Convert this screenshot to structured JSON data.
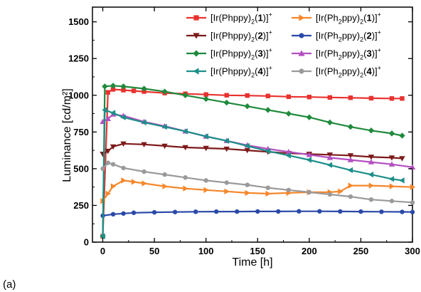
{
  "panel_label": "(a)",
  "chart_data": {
    "type": "line",
    "xlabel": "Time [h]",
    "ylabel": "Luminance [cd/m²]",
    "xlim": [
      -10,
      300
    ],
    "ylim": [
      0,
      1600
    ],
    "xticks": [
      0,
      50,
      100,
      150,
      200,
      250,
      300
    ],
    "yticks": [
      0,
      250,
      500,
      750,
      1000,
      1250,
      1500
    ],
    "grid": false,
    "legend_position": "top",
    "series": [
      {
        "name": "[Ir(Phppy)2(1)]+",
        "color": "#e8322f",
        "marker": "square",
        "legend": {
          "pre": "[Ir(Phppy)",
          "sub": "2",
          "num": "1",
          "sup": "+"
        },
        "x": [
          0,
          5,
          10,
          20,
          30,
          40,
          60,
          80,
          100,
          120,
          140,
          160,
          180,
          200,
          220,
          240,
          260,
          280,
          290
        ],
        "y": [
          40,
          1020,
          1040,
          1035,
          1030,
          1025,
          1015,
          1010,
          1005,
          1000,
          998,
          995,
          990,
          988,
          985,
          983,
          980,
          978,
          978
        ]
      },
      {
        "name": "[Ir(Ph2ppy)2(1)]+",
        "color": "#f5872b",
        "marker": "triangle-right",
        "legend": {
          "pre": "[Ir(Ph",
          "sub": "2",
          "mid": "ppy)",
          "sub2": "2",
          "num": "1",
          "sup": "+"
        },
        "x": [
          0,
          5,
          10,
          20,
          30,
          40,
          60,
          80,
          100,
          120,
          140,
          160,
          180,
          200,
          220,
          230,
          240,
          260,
          280,
          300
        ],
        "y": [
          280,
          330,
          380,
          420,
          410,
          400,
          380,
          365,
          355,
          345,
          335,
          330,
          335,
          340,
          340,
          345,
          385,
          385,
          380,
          375
        ]
      },
      {
        "name": "[Ir(Phppy)2(2)]+",
        "color": "#7d1a1a",
        "marker": "triangle-down",
        "legend": {
          "pre": "[Ir(Phppy)",
          "sub": "2",
          "num": "2",
          "sup": "+"
        },
        "x": [
          0,
          5,
          10,
          20,
          40,
          60,
          80,
          100,
          120,
          140,
          160,
          180,
          200,
          220,
          240,
          260,
          280,
          290
        ],
        "y": [
          600,
          620,
          650,
          670,
          665,
          655,
          645,
          640,
          635,
          625,
          615,
          605,
          600,
          595,
          590,
          580,
          575,
          570
        ]
      },
      {
        "name": "[Ir(Ph2ppy)2(2)]+",
        "color": "#2b49a8",
        "marker": "circle",
        "legend": {
          "pre": "[Ir(Ph",
          "sub": "2",
          "mid": "ppy)",
          "sub2": "2",
          "num": "2",
          "sup": "+"
        },
        "x": [
          0,
          10,
          20,
          30,
          50,
          70,
          90,
          110,
          130,
          150,
          170,
          190,
          210,
          230,
          250,
          270,
          290,
          300
        ],
        "y": [
          180,
          190,
          195,
          200,
          203,
          205,
          207,
          208,
          208,
          209,
          209,
          210,
          210,
          209,
          208,
          207,
          206,
          205
        ]
      },
      {
        "name": "[Ir(Phppy)2(3)]+",
        "color": "#1f8a3c",
        "marker": "diamond",
        "legend": {
          "pre": "[Ir(Phppy)",
          "sub": "2",
          "num": "3",
          "sup": "+"
        },
        "x": [
          0,
          2,
          10,
          20,
          40,
          60,
          80,
          100,
          120,
          140,
          160,
          180,
          200,
          220,
          240,
          260,
          280,
          290
        ],
        "y": [
          40,
          1060,
          1065,
          1060,
          1045,
          1025,
          1000,
          975,
          950,
          925,
          900,
          875,
          850,
          815,
          785,
          760,
          740,
          725
        ]
      },
      {
        "name": "[Ir(Ph2ppy)2(3)]+",
        "color": "#b44fc1",
        "marker": "triangle-up",
        "legend": {
          "pre": "[Ir(Ph",
          "sub": "2",
          "mid": "ppy)",
          "sub2": "2",
          "num": "3",
          "sup": "+"
        },
        "x": [
          0,
          5,
          10,
          20,
          40,
          60,
          80,
          100,
          120,
          140,
          160,
          180,
          200,
          220,
          240,
          260,
          280,
          300
        ],
        "y": [
          820,
          840,
          870,
          860,
          820,
          790,
          755,
          720,
          690,
          660,
          635,
          615,
          595,
          575,
          560,
          545,
          530,
          510
        ]
      },
      {
        "name": "[Ir(Phppy)2(4)]+",
        "color": "#1d8f8a",
        "marker": "triangle-left",
        "legend": {
          "pre": "[Ir(Phppy)",
          "sub": "2",
          "num": "4",
          "sup": "+"
        },
        "x": [
          0,
          2,
          10,
          20,
          40,
          60,
          80,
          100,
          120,
          140,
          160,
          180,
          200,
          220,
          240,
          260,
          280,
          290
        ],
        "y": [
          40,
          900,
          880,
          850,
          815,
          785,
          755,
          720,
          690,
          655,
          620,
          590,
          560,
          525,
          490,
          460,
          430,
          420
        ]
      },
      {
        "name": "[Ir(Ph2ppy)2(4)]+",
        "color": "#9a9a9a",
        "marker": "circle",
        "legend": {
          "pre": "[Ir(Ph",
          "sub": "2",
          "mid": "ppy)",
          "sub2": "2",
          "num": "4",
          "sup": "+"
        },
        "x": [
          0,
          5,
          10,
          20,
          40,
          60,
          80,
          100,
          120,
          140,
          160,
          180,
          200,
          220,
          240,
          260,
          280,
          300
        ],
        "y": [
          500,
          540,
          530,
          505,
          480,
          460,
          440,
          420,
          405,
          390,
          370,
          355,
          340,
          325,
          310,
          290,
          280,
          270
        ]
      }
    ]
  }
}
